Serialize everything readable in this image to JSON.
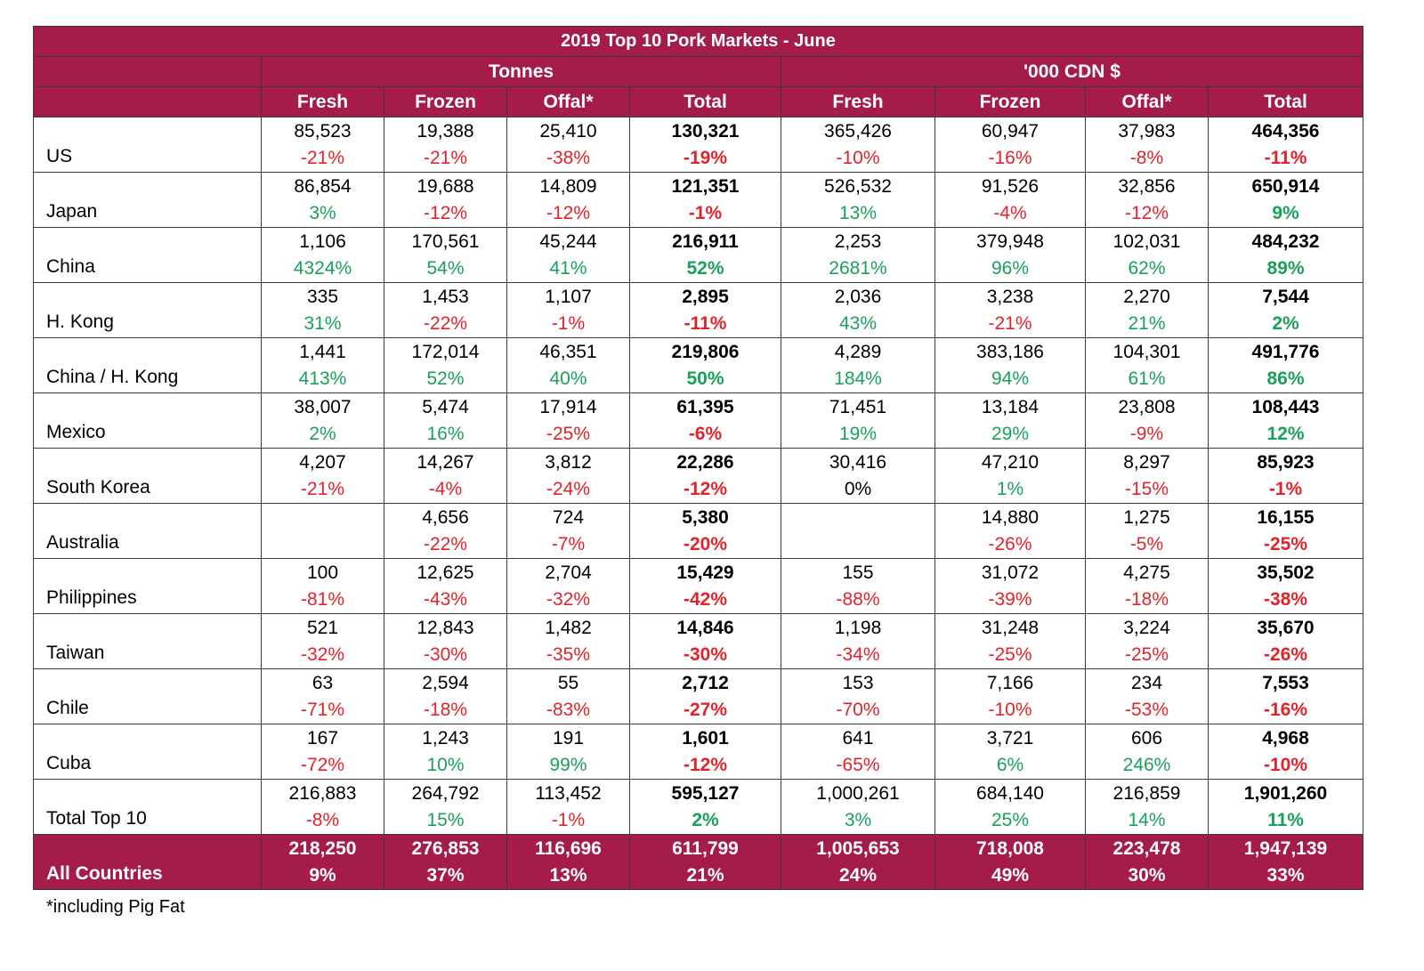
{
  "title": "2019 Top 10 Pork Markets - June",
  "group_headers": [
    "Tonnes",
    "'000 CDN $"
  ],
  "columns": [
    "Fresh",
    "Frozen",
    "Offal*",
    "Total",
    "Fresh",
    "Frozen",
    "Offal*",
    "Total"
  ],
  "rows": [
    {
      "label": "US",
      "values": [
        "85,523",
        "19,388",
        "25,410",
        "130,321",
        "365,426",
        "60,947",
        "37,983",
        "464,356"
      ],
      "pcts": [
        "-21%",
        "-21%",
        "-38%",
        "-19%",
        "-10%",
        "-16%",
        "-8%",
        "-11%"
      ]
    },
    {
      "label": "Japan",
      "values": [
        "86,854",
        "19,688",
        "14,809",
        "121,351",
        "526,532",
        "91,526",
        "32,856",
        "650,914"
      ],
      "pcts": [
        "3%",
        "-12%",
        "-12%",
        "-1%",
        "13%",
        "-4%",
        "-12%",
        "9%"
      ]
    },
    {
      "label": "China",
      "values": [
        "1,106",
        "170,561",
        "45,244",
        "216,911",
        "2,253",
        "379,948",
        "102,031",
        "484,232"
      ],
      "pcts": [
        "4324%",
        "54%",
        "41%",
        "52%",
        "2681%",
        "96%",
        "62%",
        "89%"
      ]
    },
    {
      "label": "H. Kong",
      "values": [
        "335",
        "1,453",
        "1,107",
        "2,895",
        "2,036",
        "3,238",
        "2,270",
        "7,544"
      ],
      "pcts": [
        "31%",
        "-22%",
        "-1%",
        "-11%",
        "43%",
        "-21%",
        "21%",
        "2%"
      ]
    },
    {
      "label": "China / H. Kong",
      "values": [
        "1,441",
        "172,014",
        "46,351",
        "219,806",
        "4,289",
        "383,186",
        "104,301",
        "491,776"
      ],
      "pcts": [
        "413%",
        "52%",
        "40%",
        "50%",
        "184%",
        "94%",
        "61%",
        "86%"
      ]
    },
    {
      "label": "Mexico",
      "values": [
        "38,007",
        "5,474",
        "17,914",
        "61,395",
        "71,451",
        "13,184",
        "23,808",
        "108,443"
      ],
      "pcts": [
        "2%",
        "16%",
        "-25%",
        "-6%",
        "19%",
        "29%",
        "-9%",
        "12%"
      ]
    },
    {
      "label": "South Korea",
      "values": [
        "4,207",
        "14,267",
        "3,812",
        "22,286",
        "30,416",
        "47,210",
        "8,297",
        "85,923"
      ],
      "pcts": [
        "-21%",
        "-4%",
        "-24%",
        "-12%",
        "0%",
        "1%",
        "-15%",
        "-1%"
      ]
    },
    {
      "label": "Australia",
      "values": [
        "",
        "4,656",
        "724",
        "5,380",
        "",
        "14,880",
        "1,275",
        "16,155"
      ],
      "pcts": [
        "",
        "-22%",
        "-7%",
        "-20%",
        "",
        "-26%",
        "-5%",
        "-25%"
      ]
    },
    {
      "label": "Philippines",
      "values": [
        "100",
        "12,625",
        "2,704",
        "15,429",
        "155",
        "31,072",
        "4,275",
        "35,502"
      ],
      "pcts": [
        "-81%",
        "-43%",
        "-32%",
        "-42%",
        "-88%",
        "-39%",
        "-18%",
        "-38%"
      ]
    },
    {
      "label": "Taiwan",
      "values": [
        "521",
        "12,843",
        "1,482",
        "14,846",
        "1,198",
        "31,248",
        "3,224",
        "35,670"
      ],
      "pcts": [
        "-32%",
        "-30%",
        "-35%",
        "-30%",
        "-34%",
        "-25%",
        "-25%",
        "-26%"
      ]
    },
    {
      "label": "Chile",
      "values": [
        "63",
        "2,594",
        "55",
        "2,712",
        "153",
        "7,166",
        "234",
        "7,553"
      ],
      "pcts": [
        "-71%",
        "-18%",
        "-83%",
        "-27%",
        "-70%",
        "-10%",
        "-53%",
        "-16%"
      ]
    },
    {
      "label": "Cuba",
      "values": [
        "167",
        "1,243",
        "191",
        "1,601",
        "641",
        "3,721",
        "606",
        "4,968"
      ],
      "pcts": [
        "-72%",
        "10%",
        "99%",
        "-12%",
        "-65%",
        "6%",
        "246%",
        "-10%"
      ]
    },
    {
      "label": "Total Top 10",
      "values": [
        "216,883",
        "264,792",
        "113,452",
        "595,127",
        "1,000,261",
        "684,140",
        "216,859",
        "1,901,260"
      ],
      "pcts": [
        "-8%",
        "15%",
        "-1%",
        "2%",
        "3%",
        "25%",
        "14%",
        "11%"
      ]
    }
  ],
  "all_countries": {
    "label": "All Countries",
    "values": [
      "218,250",
      "276,853",
      "116,696",
      "611,799",
      "1,005,653",
      "718,008",
      "223,478",
      "1,947,139"
    ],
    "pcts": [
      "9%",
      "37%",
      "13%",
      "21%",
      "24%",
      "49%",
      "30%",
      "33%"
    ]
  },
  "footnote": "*including Pig Fat",
  "colors": {
    "header_bg": "#a51c4b",
    "negative": "#e3232b",
    "positive": "#1aa05a"
  }
}
